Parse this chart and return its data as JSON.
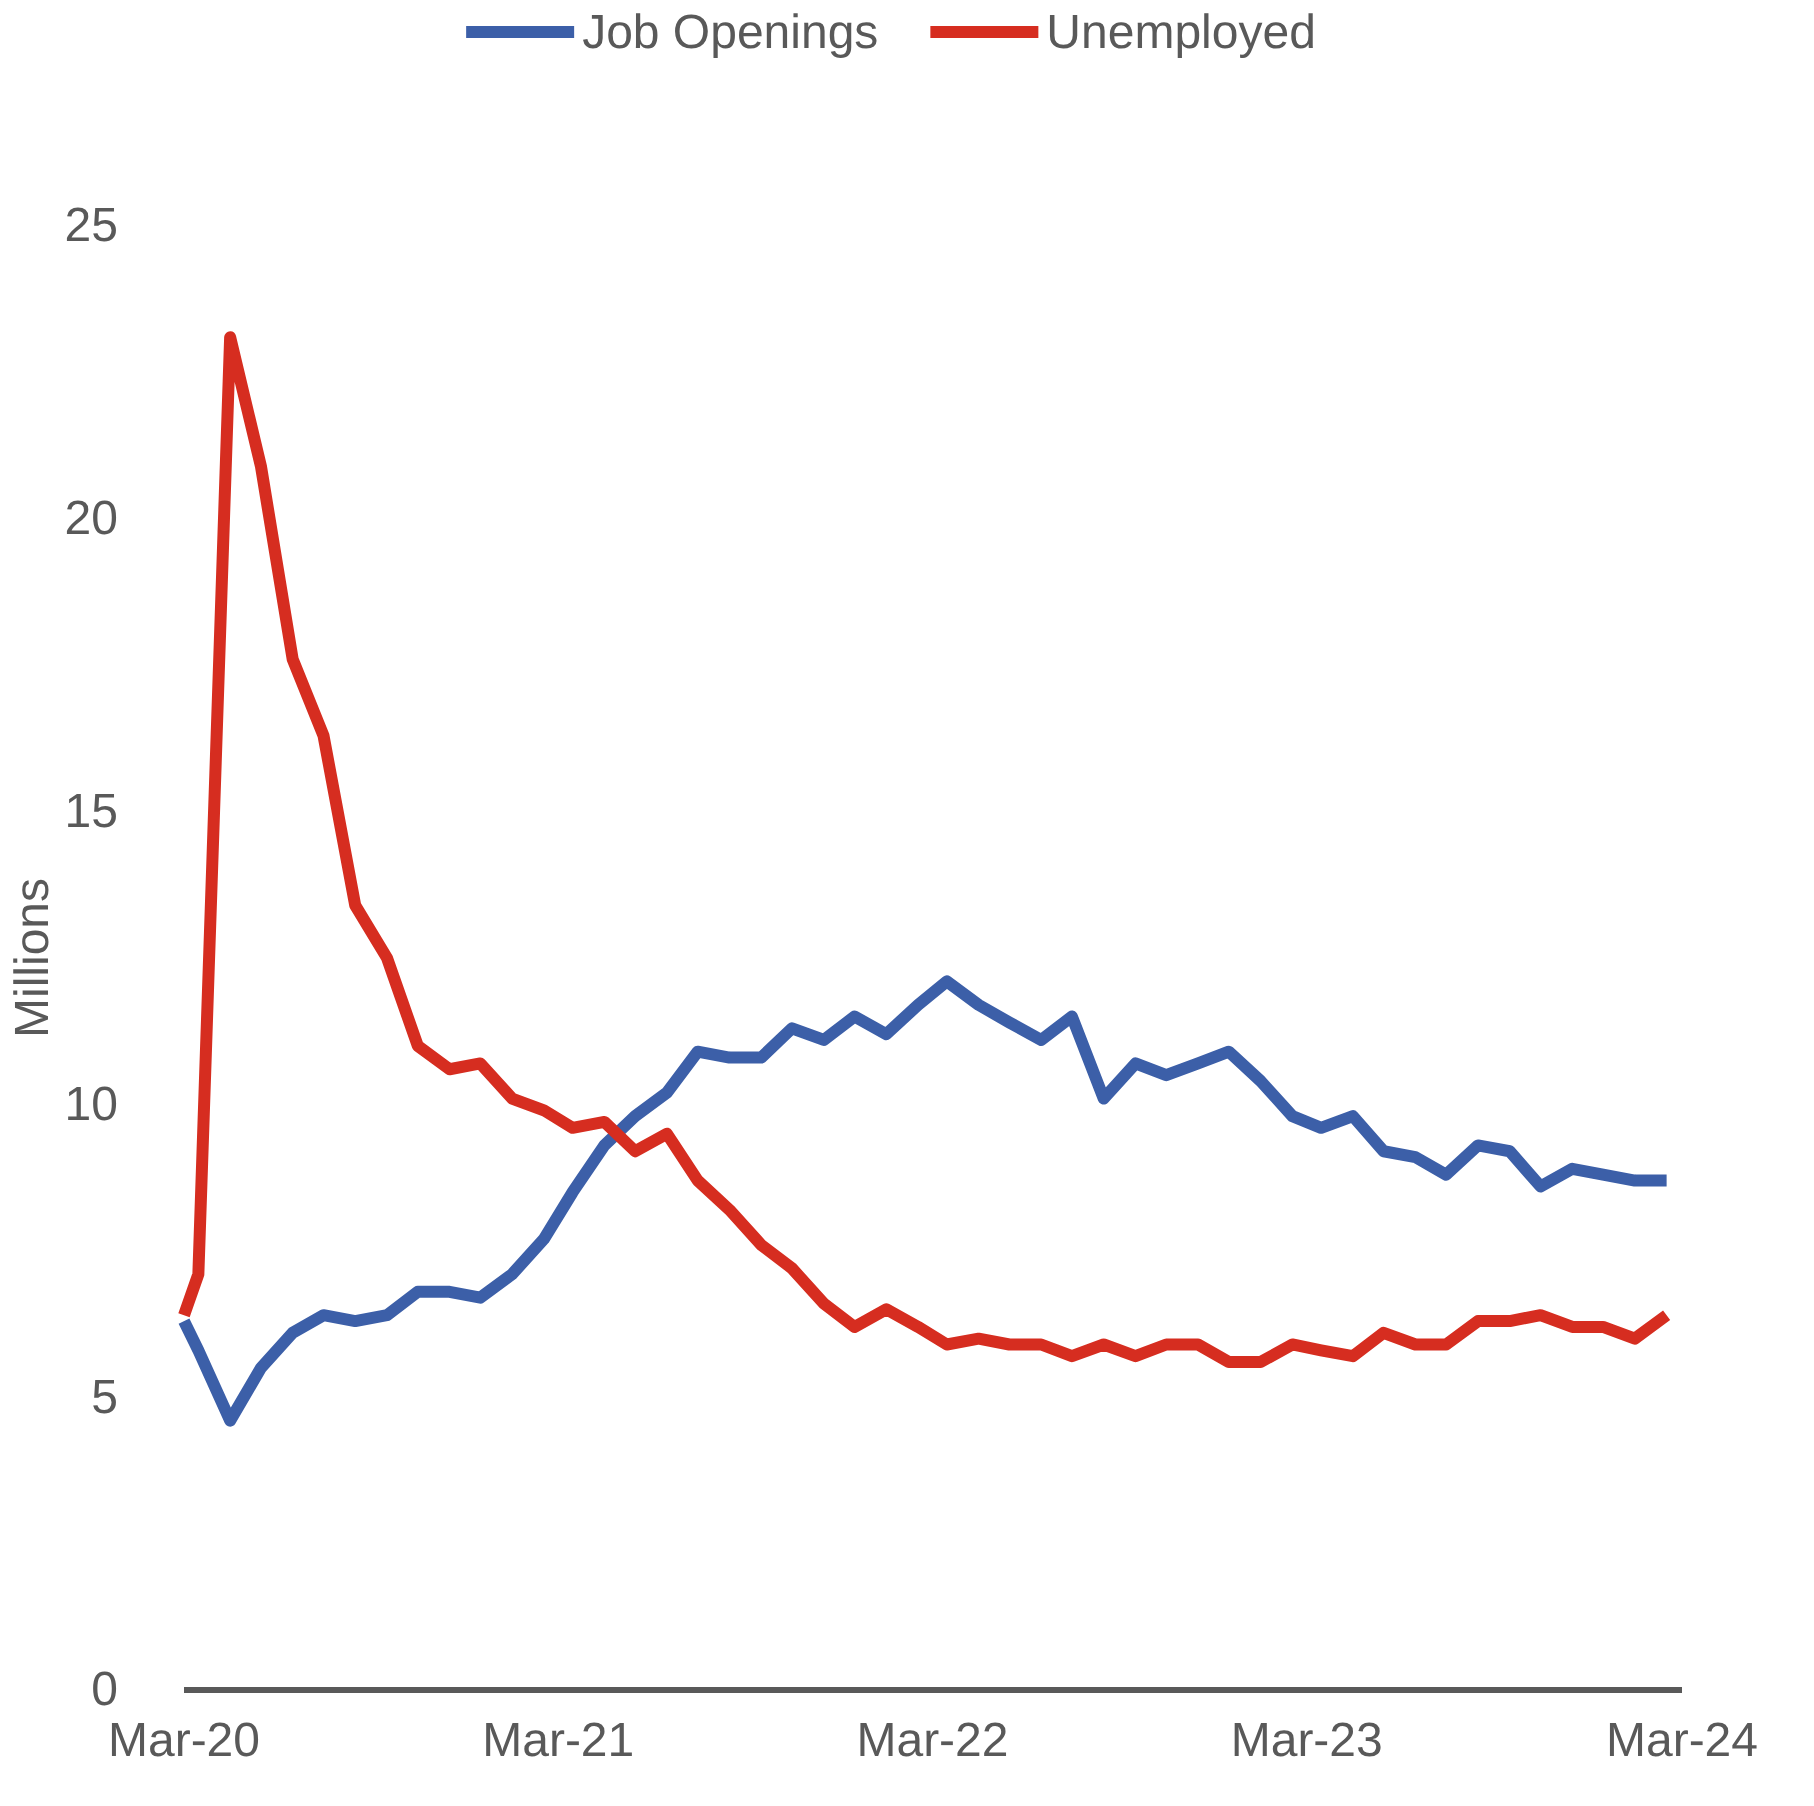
{
  "chart_data": {
    "type": "line",
    "ylabel": "Millions",
    "legend": "top",
    "line_style": "solid",
    "marker": "none",
    "grid": false,
    "x": [
      "2020-03-01",
      "2020-03-15",
      "2020-04-15",
      "2020-05-15",
      "2020-06-15",
      "2020-07-15",
      "2020-08-15",
      "2020-09-15",
      "2020-10-15",
      "2020-11-15",
      "2020-12-15",
      "2021-01-15",
      "2021-02-15",
      "2021-03-15",
      "2021-04-15",
      "2021-05-15",
      "2021-06-15",
      "2021-07-15",
      "2021-08-15",
      "2021-09-15",
      "2021-10-15",
      "2021-11-15",
      "2021-12-15",
      "2022-01-15",
      "2022-02-15",
      "2022-03-15",
      "2022-04-15",
      "2022-05-15",
      "2022-06-15",
      "2022-07-15",
      "2022-08-15",
      "2022-09-15",
      "2022-10-15",
      "2022-11-15",
      "2022-12-15",
      "2023-01-15",
      "2023-02-15",
      "2023-03-15",
      "2023-04-15",
      "2023-05-15",
      "2023-06-15",
      "2023-07-15",
      "2023-08-15",
      "2023-09-15",
      "2023-10-15",
      "2023-11-15",
      "2023-12-15",
      "2024-01-15",
      "2024-02-15"
    ],
    "xlim": [
      "2020-03-01",
      "2024-03-01"
    ],
    "xticks": [
      {
        "value": "2020-03-01",
        "label": "Mar-20"
      },
      {
        "value": "2021-03-01",
        "label": "Mar-21"
      },
      {
        "value": "2022-03-01",
        "label": "Mar-22"
      },
      {
        "value": "2023-03-01",
        "label": "Mar-23"
      },
      {
        "value": "2024-03-01",
        "label": "Mar-24"
      }
    ],
    "ylim": [
      0,
      25
    ],
    "yticks": [
      0,
      5,
      10,
      15,
      20,
      25
    ],
    "series": [
      {
        "name": "Job Openings",
        "color": "#3c5fa8",
        "values": [
          6.3,
          5.8,
          4.6,
          5.5,
          6.1,
          6.4,
          6.3,
          6.4,
          6.8,
          6.8,
          6.7,
          7.1,
          7.7,
          8.5,
          9.3,
          9.8,
          10.2,
          10.9,
          10.8,
          10.8,
          11.3,
          11.1,
          11.5,
          11.2,
          11.7,
          12.1,
          11.7,
          11.4,
          11.1,
          11.5,
          10.1,
          10.7,
          10.5,
          10.7,
          10.9,
          10.4,
          9.8,
          9.6,
          9.8,
          9.2,
          9.1,
          8.8,
          9.3,
          9.2,
          8.6,
          8.9,
          8.8,
          8.7,
          8.7
        ]
      },
      {
        "name": "Unemployed",
        "color": "#d62d20",
        "values": [
          6.4,
          7.1,
          23.1,
          20.9,
          17.6,
          16.3,
          13.4,
          12.5,
          11.0,
          10.6,
          10.7,
          10.1,
          9.9,
          9.6,
          9.7,
          9.2,
          9.5,
          8.7,
          8.2,
          7.6,
          7.2,
          6.6,
          6.2,
          6.5,
          6.2,
          5.9,
          6.0,
          5.9,
          5.9,
          5.7,
          5.9,
          5.7,
          5.9,
          5.9,
          5.6,
          5.6,
          5.9,
          5.8,
          5.7,
          6.1,
          5.9,
          5.9,
          6.3,
          6.3,
          6.4,
          6.2,
          6.2,
          6.0,
          6.4
        ]
      }
    ]
  }
}
